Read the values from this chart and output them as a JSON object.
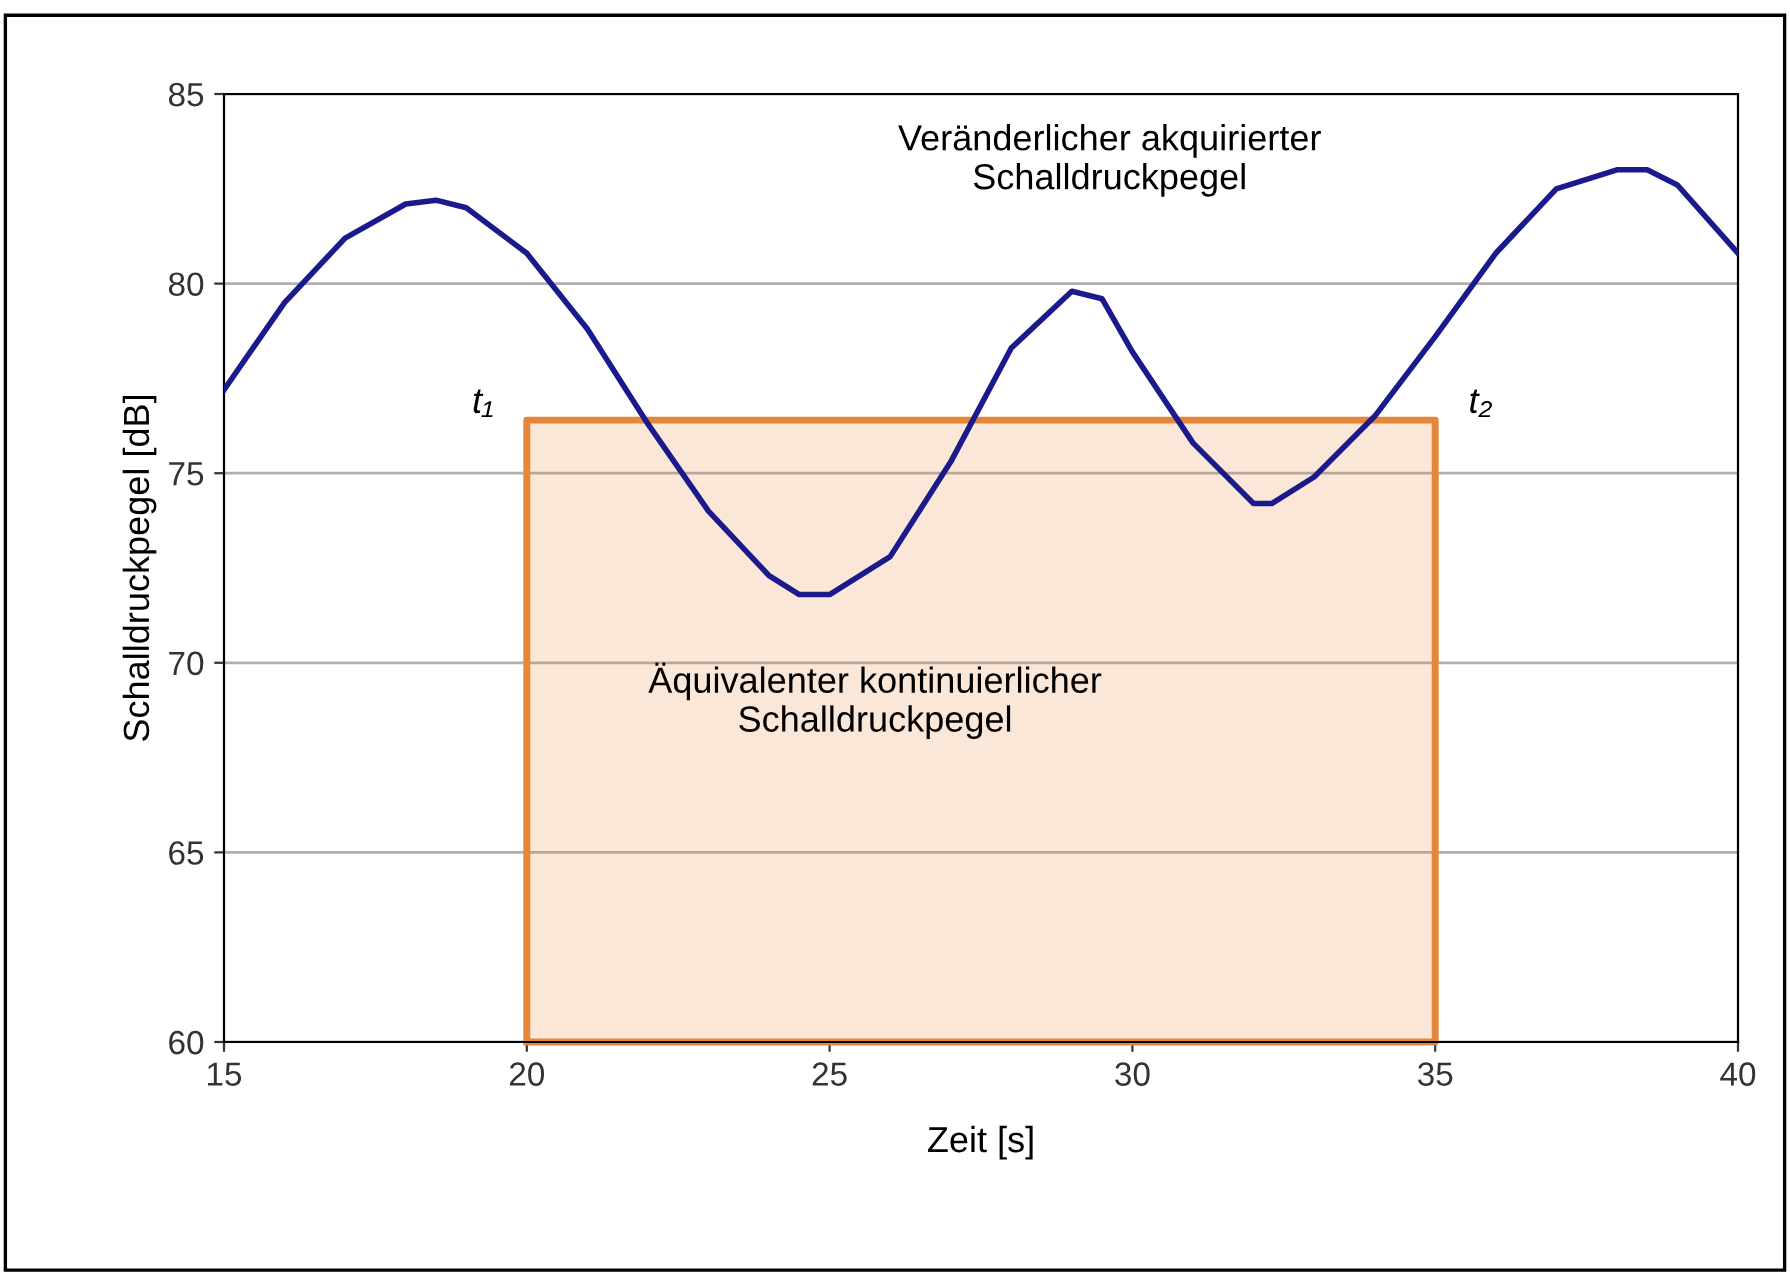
{
  "chart_data": {
    "type": "line",
    "xlabel": "Zeit [s]",
    "ylabel": "Schalldruckpegel [dB]",
    "series": [
      {
        "type": "area",
        "color": "#e4873a",
        "x": [
          20,
          35
        ],
        "values": [
          76.4,
          76.4
        ]
      },
      {
        "color": "#1a1a8c",
        "x": [
          15,
          16,
          17,
          18,
          18.5,
          19,
          20,
          21,
          22,
          23,
          24,
          24.5,
          25,
          26,
          27,
          28,
          29,
          29.5,
          30,
          31,
          32,
          32.3,
          33,
          34,
          35,
          36,
          37,
          38,
          38.5,
          39,
          40
        ],
        "values": [
          77.2,
          79.5,
          81.2,
          82.1,
          82.2,
          82.0,
          80.8,
          78.8,
          76.3,
          74.0,
          72.3,
          71.8,
          71.8,
          72.8,
          75.3,
          78.3,
          79.8,
          79.6,
          78.2,
          75.8,
          74.2,
          74.2,
          74.9,
          76.5,
          78.6,
          80.8,
          82.5,
          83.0,
          83.0,
          82.6,
          80.8
        ]
      }
    ],
    "annotations": [
      {
        "text": "t₁",
        "x": 20,
        "y": 76.4
      },
      {
        "text": "t₂",
        "x": 35,
        "y": 76.4
      },
      "Veränderlicher akquirierter\nSchalldruckpegel",
      "Äquivalenter kontinuierlicher\nSchalldruckpegel"
    ],
    "xlim": [
      15,
      40
    ],
    "ylim": [
      60,
      85
    ],
    "xticks": [
      15,
      20,
      25,
      30,
      35,
      40
    ],
    "yticks": [
      60,
      65,
      70,
      75,
      80,
      85
    ],
    "grid": "y",
    "legend": false
  }
}
